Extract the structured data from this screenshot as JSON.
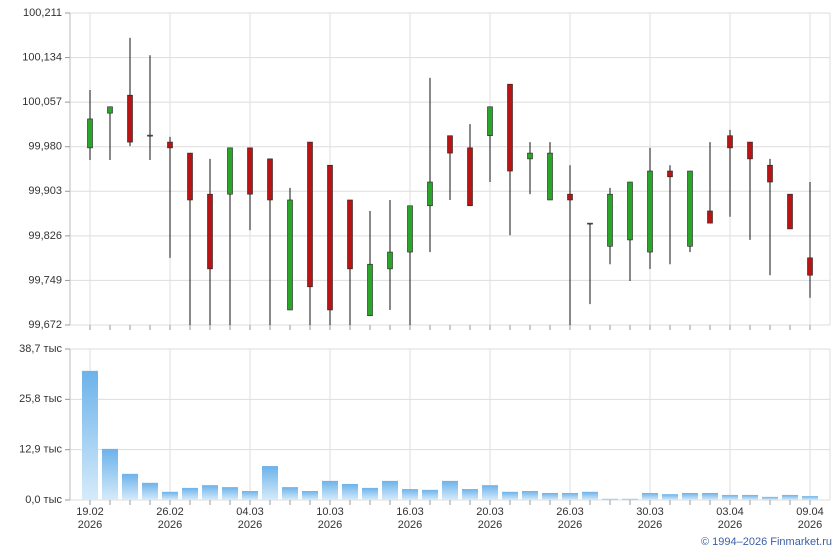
{
  "chart_data": [
    {
      "type": "candlestick",
      "open": [
        99.978,
        100.038,
        100.069,
        99.999,
        99.988,
        99.969,
        99.898,
        99.898,
        99.978,
        99.959,
        99.698,
        99.988,
        99.948,
        99.888,
        99.688,
        99.769,
        99.798,
        99.878,
        99.999,
        99.978,
        99.999,
        100.088,
        99.959,
        99.888,
        99.898,
        99.848,
        99.808,
        99.819,
        99.798,
        99.938,
        99.808,
        99.869,
        99.999,
        99.988,
        99.948,
        99.898,
        99.788
      ],
      "high": [
        100.078,
        100.049,
        100.168,
        100.138,
        99.997,
        99.969,
        99.959,
        99.978,
        99.978,
        99.959,
        99.909,
        99.988,
        99.948,
        99.888,
        99.869,
        99.888,
        99.878,
        100.099,
        99.999,
        100.019,
        100.049,
        100.088,
        99.988,
        99.988,
        99.948,
        99.848,
        99.909,
        99.919,
        99.978,
        99.948,
        99.938,
        99.988,
        100.009,
        99.988,
        99.959,
        99.898,
        99.919
      ],
      "low": [
        99.957,
        99.957,
        99.981,
        99.957,
        99.788,
        99.672,
        99.672,
        99.672,
        99.836,
        99.672,
        99.698,
        99.672,
        99.672,
        99.672,
        99.688,
        99.698,
        99.672,
        99.798,
        99.888,
        99.878,
        99.919,
        99.827,
        99.898,
        99.888,
        99.672,
        99.708,
        99.777,
        99.748,
        99.769,
        99.777,
        99.798,
        99.848,
        99.859,
        99.819,
        99.758,
        99.838,
        99.719
      ],
      "close": [
        100.028,
        100.049,
        99.988,
        100.0,
        99.978,
        99.888,
        99.769,
        99.978,
        99.898,
        99.888,
        99.888,
        99.738,
        99.698,
        99.769,
        99.777,
        99.798,
        99.878,
        99.919,
        99.969,
        99.878,
        100.049,
        99.938,
        99.969,
        99.969,
        99.888,
        99.848,
        99.898,
        99.919,
        99.938,
        99.928,
        99.938,
        99.848,
        99.978,
        99.959,
        99.919,
        99.838,
        99.758
      ],
      "up_color": "#2aa52a",
      "down_color": "#b81414",
      "ylim": [
        99.672,
        100.211
      ],
      "yticks": [
        {
          "value": 99.672,
          "label": "99,672"
        },
        {
          "value": 99.749,
          "label": "99,749"
        },
        {
          "value": 99.826,
          "label": "99,826"
        },
        {
          "value": 99.903,
          "label": "99,903"
        },
        {
          "value": 99.98,
          "label": "99,980"
        },
        {
          "value": 100.057,
          "label": "100,057"
        },
        {
          "value": 100.134,
          "label": "100,134"
        },
        {
          "value": 100.211,
          "label": "100,211"
        }
      ],
      "grid": true
    },
    {
      "type": "bar",
      "categories": [
        "19.02",
        null,
        null,
        null,
        "26.02",
        null,
        null,
        null,
        "04.03",
        null,
        null,
        null,
        "10.03",
        null,
        null,
        null,
        "16.03",
        null,
        null,
        null,
        "20.03",
        null,
        null,
        null,
        "26.03",
        null,
        null,
        null,
        "30.03",
        null,
        null,
        null,
        "03.04",
        null,
        null,
        null,
        "09.04"
      ],
      "years": [
        "2026",
        null,
        null,
        null,
        "2026",
        null,
        null,
        null,
        "2026",
        null,
        null,
        null,
        "2026",
        null,
        null,
        null,
        "2026",
        null,
        null,
        null,
        "2026",
        null,
        null,
        null,
        "2026",
        null,
        null,
        null,
        "2026",
        null,
        null,
        null,
        "2026",
        null,
        null,
        null,
        "2026"
      ],
      "values": [
        33.1,
        13.1,
        6.7,
        4.4,
        2.1,
        3.1,
        3.8,
        3.3,
        2.3,
        8.7,
        3.3,
        2.3,
        4.9,
        4.1,
        3.1,
        4.9,
        2.8,
        2.6,
        4.9,
        2.8,
        3.8,
        2.1,
        2.3,
        1.8,
        1.8,
        2.1,
        0.3,
        0.3,
        1.8,
        1.5,
        1.8,
        1.8,
        1.3,
        1.3,
        0.8,
        1.3,
        1.0
      ],
      "color": "#6cb2ea",
      "ylim": [
        0,
        38.7
      ],
      "yticks": [
        {
          "value": 0,
          "label": "0,0 тыс"
        },
        {
          "value": 12.9,
          "label": "12,9 тыс"
        },
        {
          "value": 25.8,
          "label": "25,8 тыс"
        },
        {
          "value": 38.7,
          "label": "38,7 тыс"
        }
      ],
      "grid": true,
      "source": "© 1994–2026 Finmarket.ru"
    }
  ]
}
